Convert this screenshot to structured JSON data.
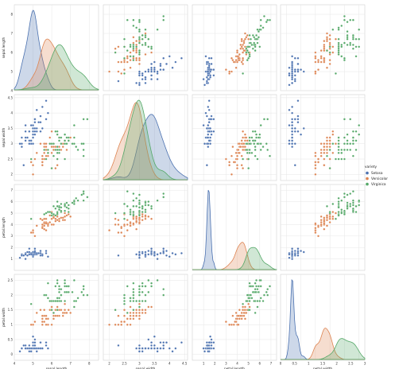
{
  "chart_data": {
    "type": "scatter",
    "title": "",
    "variables": [
      "sepal.length",
      "sepal.width",
      "petal.length",
      "petal.width"
    ],
    "axis_labels": [
      "sepal.length",
      "sepal.width",
      "petal.length",
      "petal.width"
    ],
    "ranges": {
      "sepal.length": [
        4,
        8.5
      ],
      "sepal.width": [
        1.8,
        4.6
      ],
      "petal.length": [
        0,
        7.5
      ],
      "petal.width": [
        -0.2,
        2.7
      ]
    },
    "ticks": {
      "sepal.length": [
        4,
        5,
        6,
        7,
        8
      ],
      "sepal.width": [
        2.0,
        2.5,
        3.0,
        3.5,
        4.0,
        4.5
      ],
      "petal.length": [
        1,
        2,
        3,
        4,
        5,
        6,
        7
      ],
      "petal.width": [
        0.0,
        0.5,
        1.0,
        1.5,
        2.0,
        2.5
      ]
    },
    "diag_ticks": {
      "petal.width": [
        0.0,
        0.5,
        1.0,
        1.5,
        2.0,
        2.5,
        3.0
      ]
    },
    "diagonal": "kde",
    "offdiagonal": "scatter",
    "grid": true,
    "legend": {
      "title": "variety",
      "placement": "center-right"
    },
    "series": [
      {
        "name": "Setosa",
        "color": "#4c72b0",
        "points": [
          [
            5.1,
            3.5,
            1.4,
            0.2
          ],
          [
            4.9,
            3.0,
            1.4,
            0.2
          ],
          [
            4.7,
            3.2,
            1.3,
            0.2
          ],
          [
            4.6,
            3.1,
            1.5,
            0.2
          ],
          [
            5.0,
            3.6,
            1.4,
            0.2
          ],
          [
            5.4,
            3.9,
            1.7,
            0.4
          ],
          [
            4.6,
            3.4,
            1.4,
            0.3
          ],
          [
            5.0,
            3.4,
            1.5,
            0.2
          ],
          [
            4.4,
            2.9,
            1.4,
            0.2
          ],
          [
            4.9,
            3.1,
            1.5,
            0.1
          ],
          [
            5.4,
            3.7,
            1.5,
            0.2
          ],
          [
            4.8,
            3.4,
            1.6,
            0.2
          ],
          [
            4.8,
            3.0,
            1.4,
            0.1
          ],
          [
            4.3,
            3.0,
            1.1,
            0.1
          ],
          [
            5.8,
            4.0,
            1.2,
            0.2
          ],
          [
            5.7,
            4.4,
            1.5,
            0.4
          ],
          [
            5.4,
            3.9,
            1.3,
            0.4
          ],
          [
            5.1,
            3.5,
            1.4,
            0.3
          ],
          [
            5.7,
            3.8,
            1.7,
            0.3
          ],
          [
            5.1,
            3.8,
            1.5,
            0.3
          ],
          [
            5.4,
            3.4,
            1.7,
            0.2
          ],
          [
            5.1,
            3.7,
            1.5,
            0.4
          ],
          [
            4.6,
            3.6,
            1.0,
            0.2
          ],
          [
            5.1,
            3.3,
            1.7,
            0.5
          ],
          [
            4.8,
            3.4,
            1.9,
            0.2
          ],
          [
            5.0,
            3.0,
            1.6,
            0.2
          ],
          [
            5.0,
            3.4,
            1.6,
            0.4
          ],
          [
            5.2,
            3.5,
            1.5,
            0.2
          ],
          [
            5.2,
            3.4,
            1.4,
            0.2
          ],
          [
            4.7,
            3.2,
            1.6,
            0.2
          ],
          [
            4.8,
            3.1,
            1.6,
            0.2
          ],
          [
            5.4,
            3.4,
            1.5,
            0.4
          ],
          [
            5.2,
            4.1,
            1.5,
            0.1
          ],
          [
            5.5,
            4.2,
            1.4,
            0.2
          ],
          [
            4.9,
            3.1,
            1.5,
            0.2
          ],
          [
            5.0,
            3.2,
            1.2,
            0.2
          ],
          [
            5.5,
            3.5,
            1.3,
            0.2
          ],
          [
            4.9,
            3.6,
            1.4,
            0.1
          ],
          [
            4.4,
            3.0,
            1.3,
            0.2
          ],
          [
            5.1,
            3.4,
            1.5,
            0.2
          ],
          [
            5.0,
            3.5,
            1.3,
            0.3
          ],
          [
            4.5,
            2.3,
            1.3,
            0.3
          ],
          [
            4.4,
            3.2,
            1.3,
            0.2
          ],
          [
            5.0,
            3.5,
            1.6,
            0.6
          ],
          [
            5.1,
            3.8,
            1.9,
            0.4
          ],
          [
            4.8,
            3.0,
            1.4,
            0.3
          ],
          [
            5.1,
            3.8,
            1.6,
            0.2
          ],
          [
            4.6,
            3.2,
            1.4,
            0.2
          ],
          [
            5.3,
            3.7,
            1.5,
            0.2
          ],
          [
            5.0,
            3.3,
            1.4,
            0.2
          ]
        ]
      },
      {
        "name": "Versicolor",
        "color": "#dd8452",
        "points": [
          [
            7.0,
            3.2,
            4.7,
            1.4
          ],
          [
            6.4,
            3.2,
            4.5,
            1.5
          ],
          [
            6.9,
            3.1,
            4.9,
            1.5
          ],
          [
            5.5,
            2.3,
            4.0,
            1.3
          ],
          [
            6.5,
            2.8,
            4.6,
            1.5
          ],
          [
            5.7,
            2.8,
            4.5,
            1.3
          ],
          [
            6.3,
            3.3,
            4.7,
            1.6
          ],
          [
            4.9,
            2.4,
            3.3,
            1.0
          ],
          [
            6.6,
            2.9,
            4.6,
            1.3
          ],
          [
            5.2,
            2.7,
            3.9,
            1.4
          ],
          [
            5.0,
            2.0,
            3.5,
            1.0
          ],
          [
            5.9,
            3.0,
            4.2,
            1.5
          ],
          [
            6.0,
            2.2,
            4.0,
            1.0
          ],
          [
            6.1,
            2.9,
            4.7,
            1.4
          ],
          [
            5.6,
            2.9,
            3.6,
            1.3
          ],
          [
            6.7,
            3.1,
            4.4,
            1.4
          ],
          [
            5.6,
            3.0,
            4.5,
            1.5
          ],
          [
            5.8,
            2.7,
            4.1,
            1.0
          ],
          [
            6.2,
            2.2,
            4.5,
            1.5
          ],
          [
            5.6,
            2.5,
            3.9,
            1.1
          ],
          [
            5.9,
            3.2,
            4.8,
            1.8
          ],
          [
            6.1,
            2.8,
            4.0,
            1.3
          ],
          [
            6.3,
            2.5,
            4.9,
            1.5
          ],
          [
            6.1,
            2.8,
            4.7,
            1.2
          ],
          [
            6.4,
            2.9,
            4.3,
            1.3
          ],
          [
            6.6,
            3.0,
            4.4,
            1.4
          ],
          [
            6.8,
            2.8,
            4.8,
            1.4
          ],
          [
            6.7,
            3.0,
            5.0,
            1.7
          ],
          [
            6.0,
            2.9,
            4.5,
            1.5
          ],
          [
            5.7,
            2.6,
            3.5,
            1.0
          ],
          [
            5.5,
            2.4,
            3.8,
            1.1
          ],
          [
            5.5,
            2.4,
            3.7,
            1.0
          ],
          [
            5.8,
            2.7,
            3.9,
            1.2
          ],
          [
            6.0,
            2.7,
            5.1,
            1.6
          ],
          [
            5.4,
            3.0,
            4.5,
            1.5
          ],
          [
            6.0,
            3.4,
            4.5,
            1.6
          ],
          [
            6.7,
            3.1,
            4.7,
            1.5
          ],
          [
            6.3,
            2.3,
            4.4,
            1.3
          ],
          [
            5.6,
            3.0,
            4.1,
            1.3
          ],
          [
            5.5,
            2.5,
            4.0,
            1.3
          ],
          [
            5.5,
            2.6,
            4.4,
            1.2
          ],
          [
            6.1,
            3.0,
            4.6,
            1.4
          ],
          [
            5.8,
            2.6,
            4.0,
            1.2
          ],
          [
            5.0,
            2.3,
            3.3,
            1.0
          ],
          [
            5.6,
            2.7,
            4.2,
            1.3
          ],
          [
            5.7,
            3.0,
            4.2,
            1.2
          ],
          [
            5.7,
            2.9,
            4.2,
            1.3
          ],
          [
            6.2,
            2.9,
            4.3,
            1.3
          ],
          [
            5.1,
            2.5,
            3.0,
            1.1
          ],
          [
            5.7,
            2.8,
            4.1,
            1.3
          ]
        ]
      },
      {
        "name": "Virginica",
        "color": "#55a868",
        "points": [
          [
            6.3,
            3.3,
            6.0,
            2.5
          ],
          [
            5.8,
            2.7,
            5.1,
            1.9
          ],
          [
            7.1,
            3.0,
            5.9,
            2.1
          ],
          [
            6.3,
            2.9,
            5.6,
            1.8
          ],
          [
            6.5,
            3.0,
            5.8,
            2.2
          ],
          [
            7.6,
            3.0,
            6.6,
            2.1
          ],
          [
            4.9,
            2.5,
            4.5,
            1.7
          ],
          [
            7.3,
            2.9,
            6.3,
            1.8
          ],
          [
            6.7,
            2.5,
            5.8,
            1.8
          ],
          [
            7.2,
            3.6,
            6.1,
            2.5
          ],
          [
            6.5,
            3.2,
            5.1,
            2.0
          ],
          [
            6.4,
            2.7,
            5.3,
            1.9
          ],
          [
            6.8,
            3.0,
            5.5,
            2.1
          ],
          [
            5.7,
            2.5,
            5.0,
            2.0
          ],
          [
            5.8,
            2.8,
            5.1,
            2.4
          ],
          [
            6.4,
            3.2,
            5.3,
            2.3
          ],
          [
            6.5,
            3.0,
            5.5,
            1.8
          ],
          [
            7.7,
            3.8,
            6.7,
            2.2
          ],
          [
            7.7,
            2.6,
            6.9,
            2.3
          ],
          [
            6.0,
            2.2,
            5.0,
            1.5
          ],
          [
            6.9,
            3.2,
            5.7,
            2.3
          ],
          [
            5.6,
            2.8,
            4.9,
            2.0
          ],
          [
            7.7,
            2.8,
            6.7,
            2.0
          ],
          [
            6.3,
            2.7,
            4.9,
            1.8
          ],
          [
            6.7,
            3.3,
            5.7,
            2.1
          ],
          [
            7.2,
            3.2,
            6.0,
            1.8
          ],
          [
            6.2,
            2.8,
            4.8,
            1.8
          ],
          [
            6.1,
            3.0,
            4.9,
            1.8
          ],
          [
            6.4,
            2.8,
            5.6,
            2.1
          ],
          [
            7.2,
            3.0,
            5.8,
            1.6
          ],
          [
            7.4,
            2.8,
            6.1,
            1.9
          ],
          [
            7.9,
            3.8,
            6.4,
            2.0
          ],
          [
            6.4,
            2.8,
            5.6,
            2.2
          ],
          [
            6.3,
            2.8,
            5.1,
            1.5
          ],
          [
            6.1,
            2.6,
            5.6,
            1.4
          ],
          [
            7.7,
            3.0,
            6.1,
            2.3
          ],
          [
            6.3,
            3.4,
            5.6,
            2.4
          ],
          [
            6.4,
            3.1,
            5.5,
            1.8
          ],
          [
            6.0,
            3.0,
            4.8,
            1.8
          ],
          [
            6.9,
            3.1,
            5.4,
            2.1
          ],
          [
            6.7,
            3.1,
            5.6,
            2.4
          ],
          [
            6.9,
            3.1,
            5.1,
            2.3
          ],
          [
            5.8,
            2.7,
            5.1,
            1.9
          ],
          [
            6.8,
            3.2,
            5.9,
            2.3
          ],
          [
            6.7,
            3.3,
            5.7,
            2.5
          ],
          [
            6.7,
            3.0,
            5.2,
            2.3
          ],
          [
            6.3,
            2.5,
            5.0,
            1.9
          ],
          [
            6.5,
            3.0,
            5.2,
            2.0
          ],
          [
            6.2,
            3.4,
            5.4,
            2.3
          ],
          [
            5.9,
            3.0,
            5.1,
            1.8
          ]
        ]
      }
    ]
  }
}
